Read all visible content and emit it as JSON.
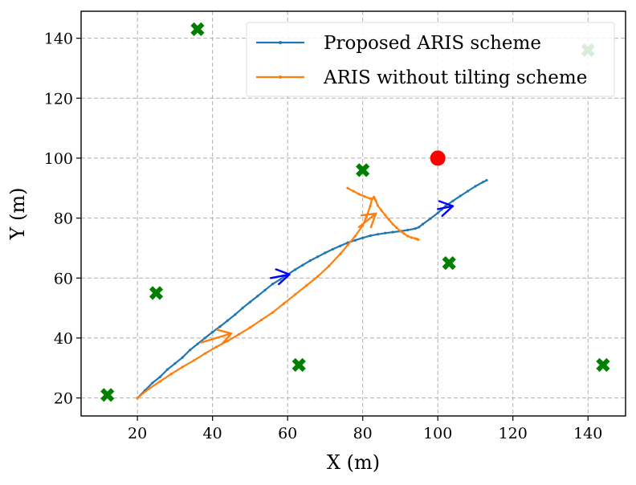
{
  "chart_data": {
    "type": "line",
    "xlabel": "X (m)",
    "ylabel": "Y (m)",
    "xlim": [
      5,
      150
    ],
    "ylim": [
      14,
      149
    ],
    "xticks": [
      20,
      40,
      60,
      80,
      100,
      120,
      140
    ],
    "yticks": [
      20,
      40,
      60,
      80,
      100,
      120,
      140
    ],
    "grid": true,
    "legend_position": "upper-right",
    "series": [
      {
        "name": "Proposed ARIS scheme",
        "color": "#1f77b4",
        "x": [
          20,
          22,
          24,
          26,
          28,
          30,
          32,
          34,
          36,
          38,
          40,
          42,
          44,
          46,
          48,
          50,
          52,
          54,
          56,
          58,
          60,
          62,
          64,
          66,
          68,
          70,
          72,
          74,
          76,
          78,
          80,
          82,
          84,
          86,
          88,
          90,
          92,
          94,
          95,
          96,
          98,
          100,
          101,
          102,
          104,
          106,
          108,
          110,
          112,
          113
        ],
        "y": [
          20,
          22.5,
          25,
          27,
          29.5,
          31.5,
          33.5,
          36,
          38,
          40,
          42,
          43.8,
          45.8,
          47.8,
          50,
          52,
          54,
          56,
          58,
          59.5,
          61.2,
          62.8,
          64.3,
          65.8,
          67.1,
          68.4,
          69.6,
          70.7,
          71.8,
          72.6,
          73.4,
          74.1,
          74.6,
          75,
          75.3,
          75.6,
          76,
          76.5,
          77,
          78,
          79.8,
          81.7,
          82.8,
          84,
          85.7,
          87.4,
          89,
          90.6,
          92,
          92.6
        ]
      },
      {
        "name": "ARIS without tilting scheme",
        "color": "#ff7f0e",
        "x": [
          20,
          23,
          26,
          29,
          32,
          35,
          38,
          41,
          44,
          47,
          50,
          53,
          56,
          59,
          62,
          65,
          68,
          71,
          74,
          76,
          78,
          80,
          81,
          82,
          82.5,
          83,
          83.2,
          83.5,
          84,
          85,
          86,
          87,
          88,
          89,
          90,
          91,
          92,
          93,
          94,
          94.5,
          94.8
        ],
        "y": [
          20,
          23,
          25.5,
          28,
          30.3,
          32.5,
          34.8,
          37,
          39,
          41.2,
          43.5,
          46,
          48.5,
          51.5,
          54.5,
          57.5,
          60.5,
          64,
          68,
          71,
          74,
          77.5,
          80.5,
          84,
          86.5,
          87,
          86.4,
          85.8,
          84.2,
          82.5,
          81,
          79.5,
          78,
          76.8,
          75.7,
          74.8,
          74,
          73.5,
          73.2,
          73,
          72.8
        ]
      },
      {
        "name": "",
        "color": "#ff7f0e",
        "x": [
          76,
          77.5,
          79,
          80.5,
          82
        ],
        "y": [
          90,
          89,
          88,
          87.2,
          86.5
        ]
      }
    ],
    "arrows": [
      {
        "color": "#0000ff",
        "x": [
          55.5,
          60.5
        ],
        "y": [
          60,
          61.2
        ]
      },
      {
        "color": "#0000ff",
        "x": [
          100,
          104
        ],
        "y": [
          83,
          84
        ]
      },
      {
        "color": "#ff7f0e",
        "x": [
          37,
          45
        ],
        "y": [
          38.5,
          41.5
        ]
      },
      {
        "color": "#ff7f0e",
        "x": [
          79,
          83.5
        ],
        "y": [
          77,
          81.5
        ]
      }
    ],
    "green_markers": {
      "color": "#008000",
      "x": [
        12,
        36,
        25,
        63,
        80,
        103,
        140,
        144
      ],
      "y": [
        21,
        143,
        55,
        31,
        96,
        65,
        136,
        31
      ]
    },
    "red_marker": {
      "color": "#ff0000",
      "x": 100,
      "y": 100
    }
  }
}
